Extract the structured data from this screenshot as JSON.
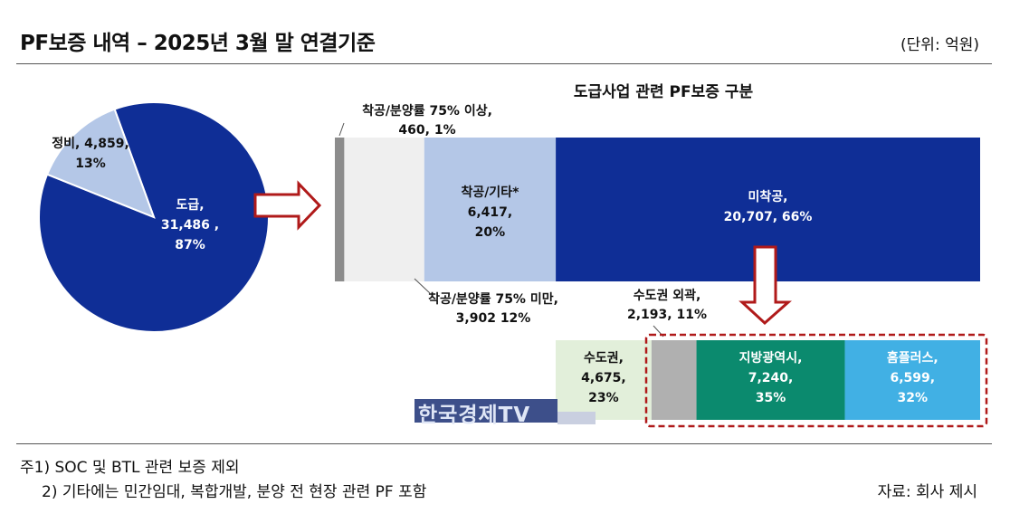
{
  "header": {
    "title": "PF보증 내역 – 2025년 3월 말 연결기준",
    "unit": "(단위: 억원)"
  },
  "footer": {
    "note1": "주1) SOC 및 BTL 관련 보증 제외",
    "note2": "2) 기타에는 민간임대, 복합개발, 분양 전 현장 관련 PF 포함",
    "source": "자료: 회사 제시"
  },
  "watermark": {
    "text": "한국경제TV"
  },
  "colors": {
    "navy": "#0f2e96",
    "lightblue": "#b4c7e7",
    "lightgray": "#efefef",
    "darkgray": "#8c8c8c",
    "midgray": "#b0b0b0",
    "lightgreen": "#e2efda",
    "teal": "#0b8a6e",
    "skyblue": "#41b0e4",
    "red": "#b01a1a"
  },
  "chart_data": [
    {
      "type": "pie",
      "slices": [
        {
          "name": "도급",
          "value": 31486,
          "pct": 87,
          "label_lines": [
            "도급,",
            "31,486 ,",
            "87%"
          ],
          "color": "#0f2e96"
        },
        {
          "name": "정비",
          "value": 4859,
          "pct": 13,
          "label_lines": [
            "정비, 4,859,",
            "13%"
          ],
          "color": "#b4c7e7"
        }
      ]
    },
    {
      "type": "bar",
      "orientation": "stacked-horizontal",
      "title": "도급사업 관련 PF보증 구분",
      "segments": [
        {
          "name": "착공/분양률 75% 이상",
          "value": 460,
          "pct": 1,
          "label_lines": [
            "착공/분양률 75% 이상,",
            "460,  1%"
          ],
          "color": "#8c8c8c"
        },
        {
          "name": "착공/분양률 75% 미만",
          "value": 3902,
          "pct": 12,
          "label_lines": [
            "착공/분양률 75% 미만,",
            "3,902  12%"
          ],
          "color": "#efefef"
        },
        {
          "name": "착공/기타*",
          "value": 6417,
          "pct": 20,
          "label_lines": [
            "착공/기타*",
            "6,417,",
            "20%"
          ],
          "color": "#b4c7e7"
        },
        {
          "name": "미착공",
          "value": 20707,
          "pct": 66,
          "label_lines": [
            "미착공,",
            "20,707, 66%"
          ],
          "color": "#0f2e96"
        }
      ]
    },
    {
      "type": "bar",
      "orientation": "stacked-horizontal",
      "segments": [
        {
          "name": "수도권",
          "value": 4675,
          "pct": 23,
          "label_lines": [
            "수도권,",
            "4,675,",
            "23%"
          ],
          "color": "#e2efda"
        },
        {
          "name": "수도권 외곽",
          "value": 2193,
          "pct": 11,
          "label_lines": [
            "수도권 외곽,",
            "2,193, 11%"
          ],
          "color": "#b0b0b0"
        },
        {
          "name": "지방광역시",
          "value": 7240,
          "pct": 35,
          "label_lines": [
            "지방광역시,",
            "7,240,",
            "35%"
          ],
          "color": "#0b8a6e"
        },
        {
          "name": "홈플러스",
          "value": 6599,
          "pct": 32,
          "label_lines": [
            "홈플러스,",
            "6,599,",
            "32%"
          ],
          "color": "#41b0e4"
        }
      ]
    }
  ]
}
